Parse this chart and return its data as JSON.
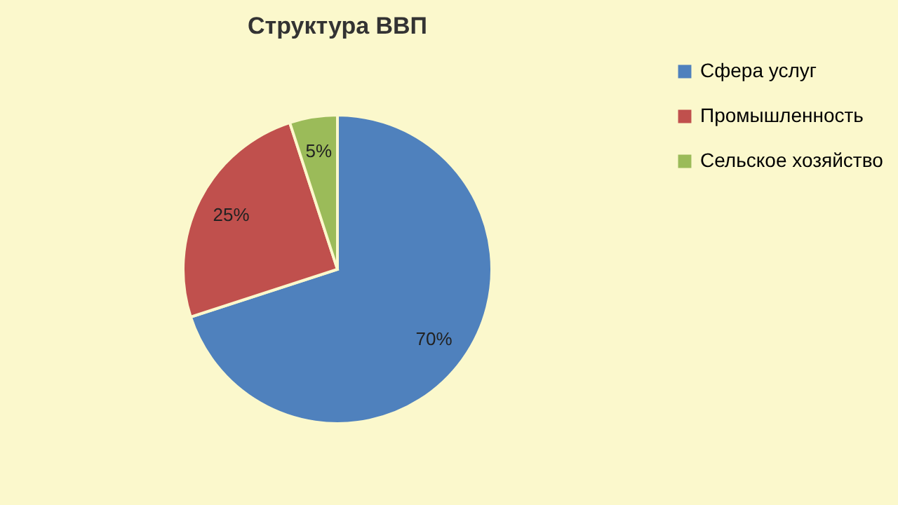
{
  "chart_data": {
    "type": "pie",
    "title": "Структура ВВП",
    "categories": [
      "Сфера услуг",
      "Промышленность",
      "Сельское хозяйство"
    ],
    "values": [
      70,
      25,
      5
    ],
    "colors": [
      "#4f81bd",
      "#c0504d",
      "#9bbb59"
    ],
    "value_labels": [
      "70%",
      "25%",
      "5%"
    ],
    "legend": "right"
  }
}
